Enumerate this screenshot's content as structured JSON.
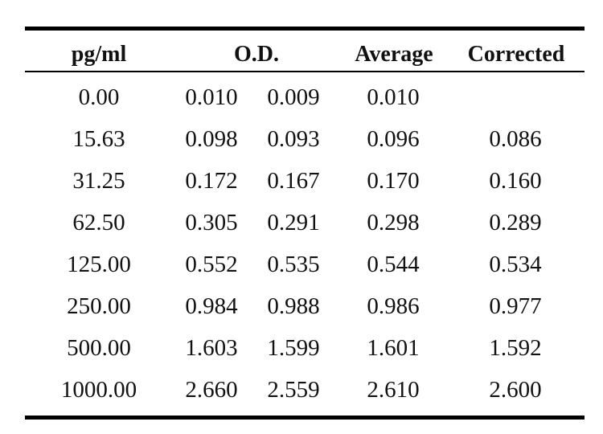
{
  "table": {
    "headers": {
      "concentration": "pg/ml",
      "od": "O.D.",
      "average": "Average",
      "corrected": "Corrected"
    },
    "rows": [
      {
        "conc": "0.00",
        "od1": "0.010",
        "od2": "0.009",
        "avg": "0.010",
        "corr": ""
      },
      {
        "conc": "15.63",
        "od1": "0.098",
        "od2": "0.093",
        "avg": "0.096",
        "corr": "0.086"
      },
      {
        "conc": "31.25",
        "od1": "0.172",
        "od2": "0.167",
        "avg": "0.170",
        "corr": "0.160"
      },
      {
        "conc": "62.50",
        "od1": "0.305",
        "od2": "0.291",
        "avg": "0.298",
        "corr": "0.289"
      },
      {
        "conc": "125.00",
        "od1": "0.552",
        "od2": "0.535",
        "avg": "0.544",
        "corr": "0.534"
      },
      {
        "conc": "250.00",
        "od1": "0.984",
        "od2": "0.988",
        "avg": "0.986",
        "corr": "0.977"
      },
      {
        "conc": "500.00",
        "od1": "1.603",
        "od2": "1.599",
        "avg": "1.601",
        "corr": "1.592"
      },
      {
        "conc": "1000.00",
        "od1": "2.660",
        "od2": "2.559",
        "avg": "2.610",
        "corr": "2.600"
      }
    ]
  }
}
